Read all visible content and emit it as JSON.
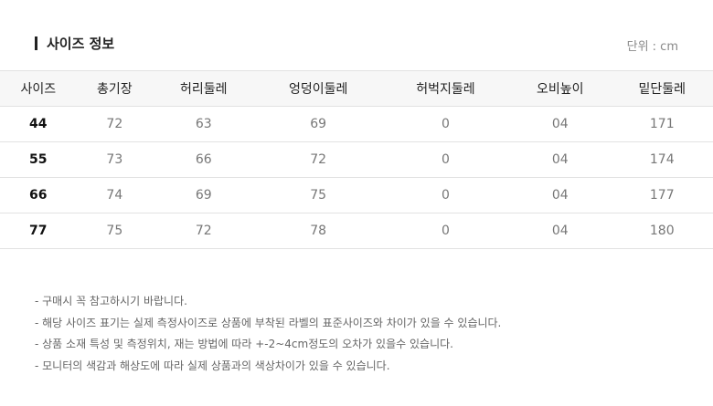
{
  "header": {
    "title": "사이즈 정보",
    "unit": "단위 : cm"
  },
  "table": {
    "columns": [
      "사이즈",
      "총기장",
      "허리둘레",
      "엉덩이둘레",
      "허벅지둘레",
      "오비높이",
      "밑단둘레"
    ],
    "rows": [
      [
        "44",
        "72",
        "63",
        "69",
        "0",
        "04",
        "171"
      ],
      [
        "55",
        "73",
        "66",
        "72",
        "0",
        "04",
        "174"
      ],
      [
        "66",
        "74",
        "69",
        "75",
        "0",
        "04",
        "177"
      ],
      [
        "77",
        "75",
        "72",
        "78",
        "0",
        "04",
        "180"
      ]
    ]
  },
  "notes": [
    "- 구매시 꼭 참고하시기 바랍니다.",
    "- 해당 사이즈 표기는 실제 측정사이즈로 상품에 부착된 라벨의 표준사이즈와 차이가 있을 수 있습니다.",
    "- 상품 소재 특성 및 측정위치, 재는 방법에 따라 +-2~4cm정도의 오차가 있을수 있습니다.",
    "- 모니터의 색감과 해상도에 따라 실제 상품과의 색상차이가 있을 수 있습니다."
  ]
}
